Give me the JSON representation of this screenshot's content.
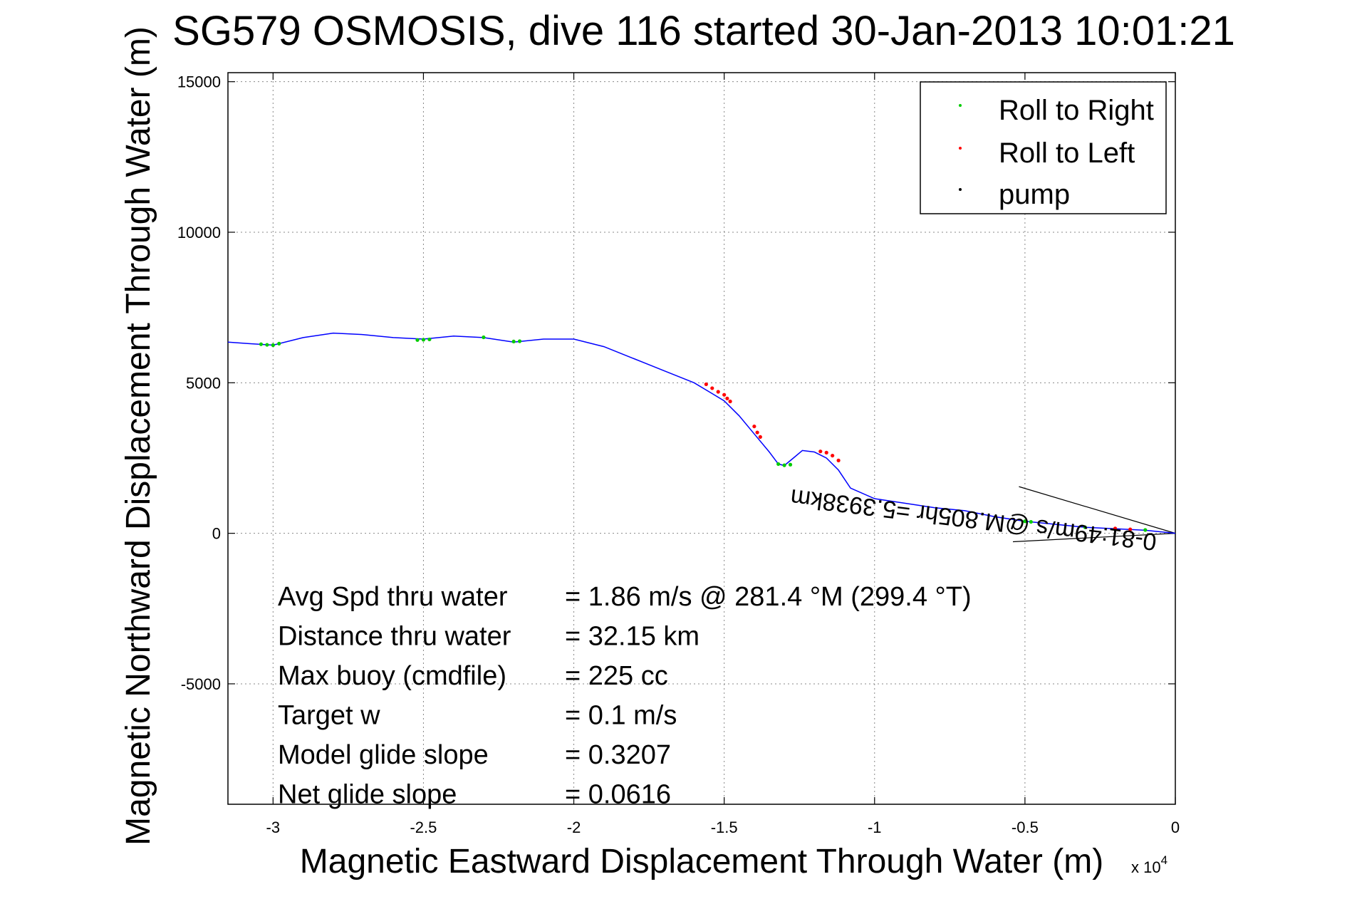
{
  "chart_data": {
    "type": "line",
    "title": "SG579 OSMOSIS, dive 116 started 30-Jan-2013 10:01:21",
    "xlabel": "Magnetic Eastward Displacement Through Water (m)",
    "ylabel": "Magnetic Northward Displacement Through Water (m)",
    "x_multiplier": "x 10",
    "x_multiplier_exp": "4",
    "xlim": [
      -3.15,
      0
    ],
    "ylim": [
      -9000,
      15300
    ],
    "x_ticks": [
      -3,
      -2.5,
      -2,
      -1.5,
      -1,
      -0.5,
      0
    ],
    "x_tick_labels": [
      "-3",
      "-2.5",
      "-2",
      "-1.5",
      "-1",
      "-0.5",
      "0"
    ],
    "y_ticks": [
      15000,
      10000,
      5000,
      0,
      -5000
    ],
    "y_tick_labels": [
      "15000",
      "10000",
      "5000",
      "0",
      "-5000"
    ],
    "grid": true,
    "legend_position": "top-right",
    "colors": {
      "track": "#0000ff",
      "roll_right": "#00cc00",
      "roll_left": "#ff0000",
      "pump": "#000000",
      "axes": "#000000",
      "grid": "#888888"
    },
    "legend": [
      {
        "label": "Roll to Right",
        "color": "#00cc00"
      },
      {
        "label": "Roll to Left",
        "color": "#ff0000"
      },
      {
        "label": "pump",
        "color": "#000000"
      }
    ],
    "track": {
      "x": [
        -3.15,
        -3.08,
        -3.0,
        -2.9,
        -2.8,
        -2.7,
        -2.6,
        -2.5,
        -2.4,
        -2.3,
        -2.2,
        -2.1,
        -2.0,
        -1.9,
        -1.8,
        -1.7,
        -1.6,
        -1.55,
        -1.5,
        -1.45,
        -1.4,
        -1.35,
        -1.32,
        -1.3,
        -1.27,
        -1.24,
        -1.2,
        -1.16,
        -1.12,
        -1.08,
        -1.0,
        -0.9,
        -0.8,
        -0.7,
        -0.6,
        -0.5,
        -0.4,
        -0.3,
        -0.2,
        -0.1,
        0.0
      ],
      "y": [
        6350,
        6300,
        6250,
        6500,
        6650,
        6600,
        6500,
        6450,
        6550,
        6500,
        6350,
        6450,
        6450,
        6200,
        5800,
        5400,
        5000,
        4700,
        4400,
        3900,
        3300,
        2700,
        2300,
        2250,
        2500,
        2750,
        2700,
        2500,
        2100,
        1500,
        1150,
        1000,
        850,
        750,
        550,
        400,
        300,
        200,
        150,
        100,
        0
      ]
    },
    "roll_right_points": {
      "x": [
        -3.04,
        -3.02,
        -3.0,
        -2.98,
        -2.52,
        -2.5,
        -2.48,
        -2.3,
        -2.2,
        -2.18,
        -1.32,
        -1.3,
        -1.28,
        -0.5,
        -0.48,
        -0.3,
        -0.1
      ],
      "y": [
        6280,
        6260,
        6250,
        6300,
        6420,
        6430,
        6440,
        6510,
        6370,
        6380,
        2300,
        2260,
        2280,
        400,
        380,
        200,
        110
      ]
    },
    "roll_left_points": {
      "x": [
        -1.56,
        -1.54,
        -1.52,
        -1.5,
        -1.49,
        -1.48,
        -1.4,
        -1.39,
        -1.38,
        -1.18,
        -1.16,
        -1.14,
        -1.12,
        -0.2,
        -0.15
      ],
      "y": [
        4950,
        4820,
        4700,
        4600,
        4480,
        4380,
        3550,
        3350,
        3200,
        2720,
        2680,
        2580,
        2420,
        160,
        130
      ]
    },
    "annotation": {
      "text": "0-81:49m/s @M.805hr =5.3938km",
      "mirrored": true
    },
    "fan_lines": [
      {
        "from": [
          0,
          0
        ],
        "to": [
          -0.52,
          1550
        ]
      },
      {
        "from": [
          0,
          0
        ],
        "to": [
          -0.54,
          -280
        ]
      }
    ],
    "stats": [
      {
        "label": "Avg Spd thru water",
        "value": "=  1.86 m/s @ 281.4 °M (299.4 °T)"
      },
      {
        "label": "Distance thru water",
        "value": "= 32.15 km"
      },
      {
        "label": "Max buoy (cmdfile)",
        "value": "= 225 cc"
      },
      {
        "label": "Target w",
        "value": "= 0.1 m/s"
      },
      {
        "label": "Model glide slope",
        "value": "= 0.3207"
      },
      {
        "label": "Net glide slope",
        "value": "= 0.0616"
      }
    ]
  }
}
